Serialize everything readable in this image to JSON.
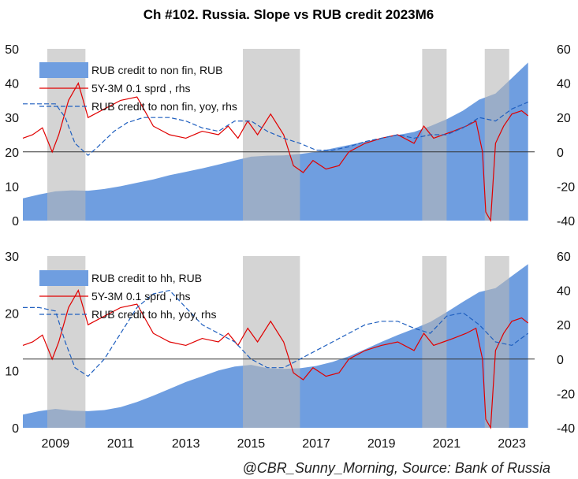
{
  "title": "Ch #102. Russia. Slope vs RUB credit 2023M6",
  "footer": "@CBR_Sunny_Morning, Source: Bank of Russia",
  "colors": {
    "area": "#6f9ee0",
    "shade": "#b8b8b8",
    "spread": "#e00000",
    "yoy": "#1f5fbf",
    "zero": "#333333"
  },
  "chart_data": [
    {
      "type": "area",
      "grid": false,
      "legend_position": "top-left",
      "ylim": [
        0,
        50
      ],
      "yticks": [
        "0",
        "10",
        "20",
        "30",
        "40",
        "50"
      ],
      "rhs_ylim": [
        -40,
        60
      ],
      "rhs_yticks": [
        "-40",
        "-20",
        "0",
        "20",
        "40",
        "60"
      ],
      "shaded_periods": [
        [
          2008.75,
          2009.92
        ],
        [
          2014.75,
          2016.5
        ],
        [
          2020.25,
          2021.0
        ],
        [
          2022.17,
          2022.92
        ]
      ],
      "series": [
        {
          "name": "RUB credit to non fin, RUB",
          "axis": "lhs",
          "x": [
            2008.0,
            2008.5,
            2009.0,
            2009.5,
            2010.0,
            2010.5,
            2011.0,
            2011.5,
            2012.0,
            2012.5,
            2013.0,
            2013.5,
            2014.0,
            2014.5,
            2015.0,
            2015.5,
            2016.0,
            2016.5,
            2017.0,
            2017.5,
            2018.0,
            2018.5,
            2019.0,
            2019.5,
            2020.0,
            2020.5,
            2021.0,
            2021.5,
            2022.0,
            2022.5,
            2023.0,
            2023.5
          ],
          "values": [
            6.5,
            7.6,
            8.5,
            8.8,
            8.7,
            9.2,
            10.0,
            11.0,
            12.0,
            13.2,
            14.2,
            15.2,
            16.3,
            17.5,
            18.6,
            18.9,
            19.0,
            19.4,
            20.0,
            21.0,
            22.0,
            23.0,
            24.0,
            24.9,
            25.8,
            27.5,
            29.5,
            32.0,
            35.2,
            37.0,
            41.5,
            46.0
          ]
        },
        {
          "name": "5Y-3M 0.1 sprd , rhs",
          "axis": "rhs",
          "x": [
            2008.0,
            2008.3,
            2008.6,
            2008.9,
            2009.1,
            2009.4,
            2009.7,
            2010.0,
            2010.5,
            2011.0,
            2011.5,
            2012.0,
            2012.5,
            2013.0,
            2013.5,
            2014.0,
            2014.3,
            2014.6,
            2014.9,
            2015.2,
            2015.6,
            2016.0,
            2016.3,
            2016.6,
            2016.9,
            2017.3,
            2017.7,
            2018.0,
            2018.5,
            2019.0,
            2019.5,
            2020.0,
            2020.3,
            2020.6,
            2020.9,
            2021.2,
            2021.6,
            2021.9,
            2022.1,
            2022.2,
            2022.35,
            2022.5,
            2022.75,
            2023.0,
            2023.3,
            2023.5
          ],
          "values": [
            8,
            10,
            14,
            0,
            10,
            30,
            40,
            20,
            25,
            30,
            32,
            15,
            10,
            8,
            12,
            10,
            15,
            8,
            18,
            10,
            22,
            10,
            -8,
            -12,
            -5,
            -10,
            -8,
            0,
            5,
            8,
            10,
            5,
            15,
            8,
            10,
            12,
            15,
            18,
            0,
            -35,
            -40,
            5,
            15,
            22,
            24,
            21
          ]
        },
        {
          "name": "RUB credit to non fin, yoy, rhs",
          "axis": "rhs",
          "x": [
            2008.0,
            2008.5,
            2009.0,
            2009.3,
            2009.6,
            2010.0,
            2010.3,
            2010.8,
            2011.2,
            2011.7,
            2012.0,
            2012.5,
            2013.0,
            2013.5,
            2014.0,
            2014.5,
            2015.0,
            2015.5,
            2016.0,
            2016.5,
            2017.0,
            2017.5,
            2018.0,
            2018.5,
            2019.0,
            2019.5,
            2020.0,
            2020.5,
            2021.0,
            2021.5,
            2022.0,
            2022.5,
            2023.0,
            2023.5
          ],
          "values": [
            28,
            28,
            28,
            20,
            5,
            -2,
            3,
            12,
            17,
            20,
            20,
            20,
            18,
            14,
            12,
            18,
            18,
            12,
            8,
            5,
            1,
            1,
            3,
            6,
            8,
            10,
            8,
            10,
            10,
            14,
            20,
            18,
            25,
            29
          ]
        }
      ]
    },
    {
      "type": "area",
      "grid": false,
      "legend_position": "top-left",
      "ylim": [
        0,
        30
      ],
      "yticks": [
        "0",
        "10",
        "20",
        "30"
      ],
      "rhs_ylim": [
        -40,
        60
      ],
      "rhs_yticks": [
        "-40",
        "-20",
        "0",
        "20",
        "40",
        "60"
      ],
      "xlim": [
        2008.0,
        2023.7
      ],
      "xticks": [
        "2009",
        "2011",
        "2013",
        "2015",
        "2017",
        "2019",
        "2021",
        "2023"
      ],
      "shaded_periods": [
        [
          2008.75,
          2009.92
        ],
        [
          2014.75,
          2016.5
        ],
        [
          2020.25,
          2021.0
        ],
        [
          2022.17,
          2022.92
        ]
      ],
      "series": [
        {
          "name": "RUB credit to hh, RUB",
          "axis": "lhs",
          "x": [
            2008.0,
            2008.5,
            2009.0,
            2009.5,
            2010.0,
            2010.5,
            2011.0,
            2011.5,
            2012.0,
            2012.5,
            2013.0,
            2013.5,
            2014.0,
            2014.5,
            2015.0,
            2015.5,
            2016.0,
            2016.5,
            2017.0,
            2017.5,
            2018.0,
            2018.5,
            2019.0,
            2019.5,
            2020.0,
            2020.5,
            2021.0,
            2021.5,
            2022.0,
            2022.5,
            2023.0,
            2023.5
          ],
          "values": [
            2.3,
            2.9,
            3.3,
            3.0,
            2.9,
            3.1,
            3.6,
            4.5,
            5.6,
            6.8,
            8.0,
            9.0,
            10.0,
            10.7,
            11.0,
            10.4,
            10.3,
            10.4,
            10.8,
            11.5,
            12.5,
            13.7,
            15.0,
            16.2,
            17.3,
            18.5,
            20.2,
            22.0,
            23.7,
            24.4,
            26.5,
            28.6
          ]
        },
        {
          "name": "5Y-3M 0.1 sprd , rhs",
          "axis": "rhs",
          "x": [
            2008.0,
            2008.3,
            2008.6,
            2008.9,
            2009.1,
            2009.4,
            2009.7,
            2010.0,
            2010.5,
            2011.0,
            2011.5,
            2012.0,
            2012.5,
            2013.0,
            2013.5,
            2014.0,
            2014.3,
            2014.6,
            2014.9,
            2015.2,
            2015.6,
            2016.0,
            2016.3,
            2016.6,
            2016.9,
            2017.3,
            2017.7,
            2018.0,
            2018.5,
            2019.0,
            2019.5,
            2020.0,
            2020.3,
            2020.6,
            2020.9,
            2021.2,
            2021.6,
            2021.9,
            2022.1,
            2022.2,
            2022.35,
            2022.5,
            2022.75,
            2023.0,
            2023.3,
            2023.5
          ],
          "values": [
            8,
            10,
            14,
            0,
            10,
            30,
            40,
            20,
            25,
            30,
            32,
            15,
            10,
            8,
            12,
            10,
            15,
            8,
            18,
            10,
            22,
            10,
            -8,
            -12,
            -5,
            -10,
            -8,
            0,
            5,
            8,
            10,
            5,
            15,
            8,
            10,
            12,
            15,
            18,
            0,
            -35,
            -40,
            5,
            15,
            22,
            24,
            21
          ]
        },
        {
          "name": "RUB credit to hh, yoy, rhs",
          "axis": "rhs",
          "x": [
            2008.0,
            2008.5,
            2009.0,
            2009.3,
            2009.6,
            2010.0,
            2010.5,
            2011.0,
            2011.5,
            2012.0,
            2012.5,
            2013.0,
            2013.5,
            2014.0,
            2014.5,
            2015.0,
            2015.5,
            2016.0,
            2016.5,
            2017.0,
            2017.5,
            2018.0,
            2018.5,
            2019.0,
            2019.5,
            2020.0,
            2020.5,
            2021.0,
            2021.5,
            2022.0,
            2022.5,
            2023.0,
            2023.5
          ],
          "values": [
            30,
            30,
            28,
            10,
            -5,
            -10,
            0,
            15,
            30,
            38,
            40,
            30,
            20,
            15,
            10,
            0,
            -5,
            -5,
            0,
            5,
            10,
            15,
            20,
            22,
            22,
            18,
            15,
            25,
            27,
            20,
            10,
            8,
            15
          ]
        }
      ]
    }
  ]
}
